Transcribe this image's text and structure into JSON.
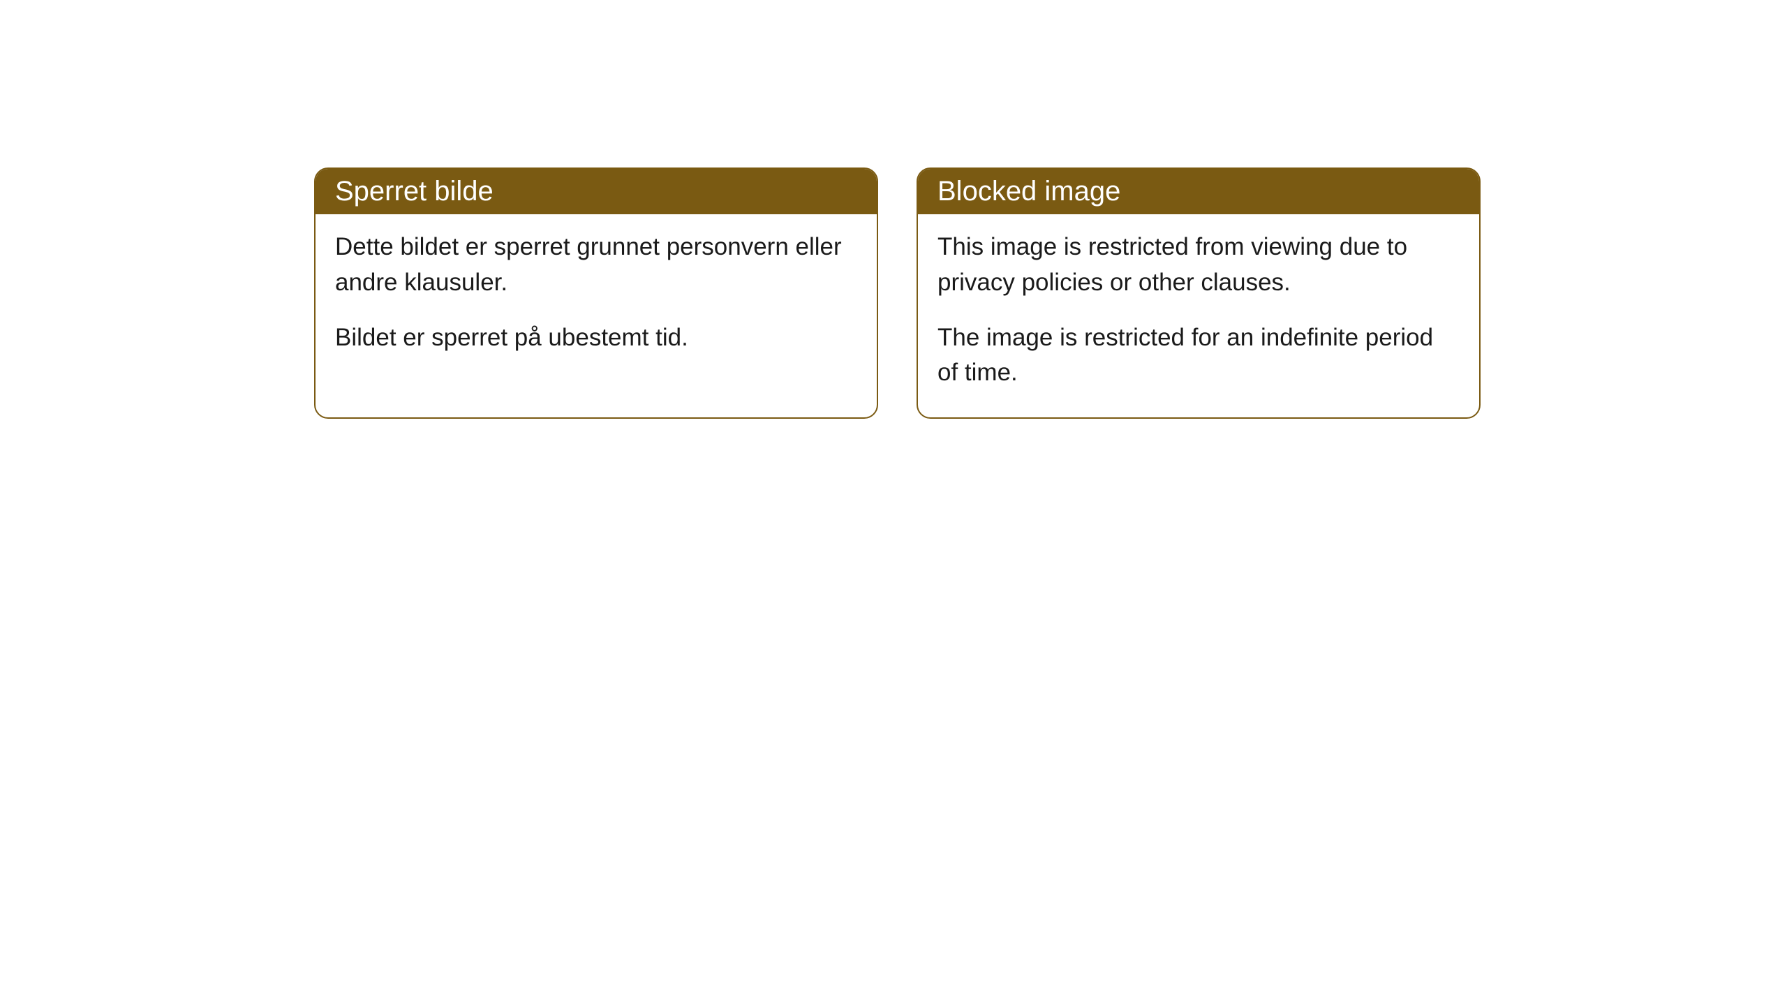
{
  "cards": [
    {
      "title": "Sperret bilde",
      "paragraph1": "Dette bildet er sperret grunnet personvern eller andre klausuler.",
      "paragraph2": "Bildet er sperret på ubestemt tid."
    },
    {
      "title": "Blocked image",
      "paragraph1": "This image is restricted from viewing due to privacy policies or other clauses.",
      "paragraph2": "The image is restricted for an indefinite period of time."
    }
  ],
  "style": {
    "header_bg_color": "#7a5a12",
    "header_text_color": "#ffffff",
    "body_text_color": "#1a1a1a",
    "card_border_color": "#7a5a12",
    "card_bg_color": "#ffffff",
    "page_bg_color": "#ffffff",
    "header_fontsize": 40,
    "body_fontsize": 35,
    "border_radius": 20
  }
}
